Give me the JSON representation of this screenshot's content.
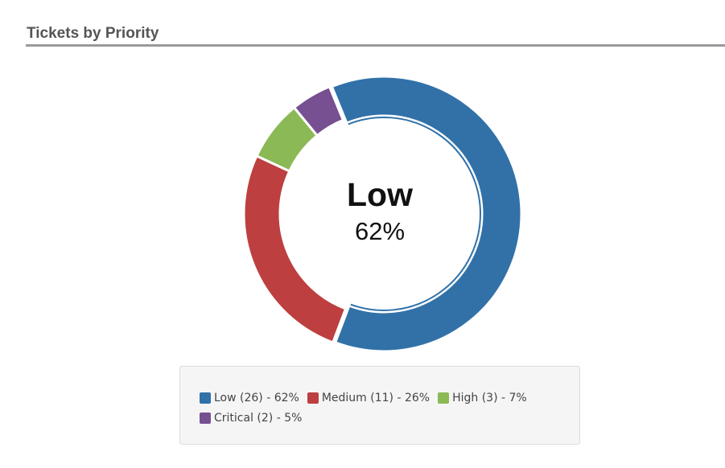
{
  "panel": {
    "title": "Tickets by Priority"
  },
  "center": {
    "label": "Low",
    "value": "62%"
  },
  "chart_data": {
    "type": "pie",
    "variant": "donut",
    "title": "Tickets by Priority",
    "categories": [
      "Low",
      "Medium",
      "High",
      "Critical"
    ],
    "values": [
      26,
      11,
      3,
      2
    ],
    "percentages": [
      62,
      26,
      7,
      5
    ],
    "colors": [
      "#3171a8",
      "#bd3f3f",
      "#8bb956",
      "#765091"
    ],
    "highlighted": "Low",
    "legend_position": "bottom"
  },
  "legend": {
    "items": [
      {
        "text": "Low (26) - 62%",
        "color": "#3171a8"
      },
      {
        "text": "Medium (11) - 26%",
        "color": "#bd3f3f"
      },
      {
        "text": "High (3) - 7%",
        "color": "#8bb956"
      },
      {
        "text": "Critical (2) - 5%",
        "color": "#765091"
      }
    ]
  }
}
